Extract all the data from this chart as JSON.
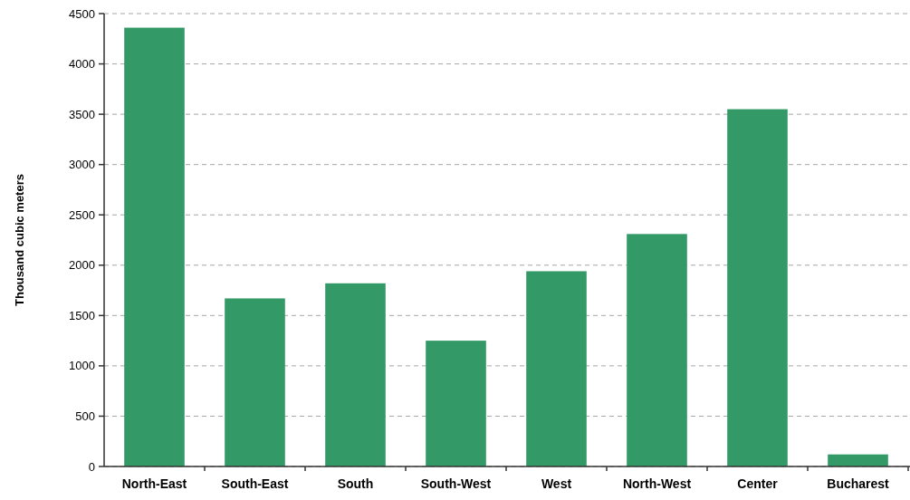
{
  "chart_data": {
    "type": "bar",
    "ylabel": "Thousand cubic meters",
    "categories": [
      "North-East",
      "South-East",
      "South",
      "South-West",
      "West",
      "North-West",
      "Center",
      "Bucharest"
    ],
    "values": [
      4360,
      1670,
      1820,
      1250,
      1940,
      2310,
      3550,
      120
    ],
    "color": "#339966",
    "ylim": [
      0,
      4500
    ],
    "yticks": [
      0,
      500,
      1000,
      1500,
      2000,
      2500,
      3000,
      3500,
      4000,
      4500
    ],
    "grid": "y"
  }
}
